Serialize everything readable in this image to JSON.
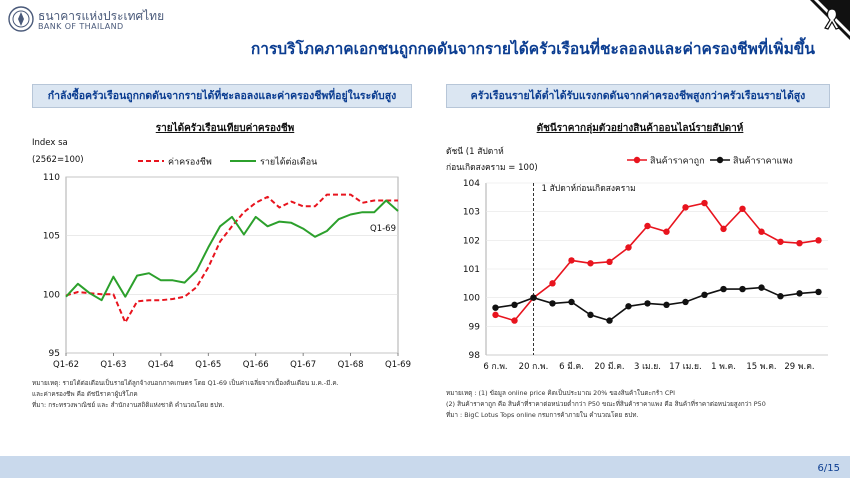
{
  "header": {
    "bank_name_th": "ธนาคารแห่งประเทศไทย",
    "bank_name_en": "BANK OF THAILAND",
    "title": "การบริโภคภาคเอกชนถูกกดดันจากรายได้ครัวเรือนที่ชะลอลงและค่าครองชีพที่เพิ่มขึ้น"
  },
  "left_panel": {
    "heading": "กำลังซื้อครัวเรือนถูกกดดันจากรายได้ที่ชะลอลงและค่าครองชีพที่อยู่ในระดับสูง",
    "chart_title": "รายได้ครัวเรือนเทียบค่าครองชีพ",
    "index_label": "Index sa",
    "base_label": "(2562=100)",
    "annotation": "Q1-69",
    "notes": [
      "หมายเหตุ: รายได้ต่อเดือนเป็นรายได้ลูกจ้างนอกภาคเกษตร โดย Q1-69 เป็นค่าเฉลี่ยจากเบื้องต้นเดือน ม.ค.-มี.ค.",
      "และค่าครองชีพ คือ ดัชนีราคาผู้บริโภค",
      "ที่มา: กระทรวงพาณิชย์ และ สำนักงานสถิติแห่งชาติ คำนวณโดย ธปท."
    ]
  },
  "right_panel": {
    "heading": "ครัวเรือนรายได้ต่ำได้รับแรงกดดันจากค่าครองชีพสูงกว่าครัวเรือนรายได้สูง",
    "chart_title": "ดัชนีราคากลุ่มตัวอย่างสินค้าออนไลน์รายสัปดาห์",
    "index_label_line1": "ดัชนี (1 สัปดาห์",
    "index_label_line2": "ก่อนเกิดสงคราม = 100)",
    "annotation": "1 สัปดาห์ก่อนเกิดสงคราม",
    "notes": [
      "หมายเหตุ : (1) ข้อมูล online price คิดเป็นประมาณ 20% ของสินค้าในตะกร้า CPI",
      "(2) สินค้าราคาถูก คือ สินค้าที่ราคาต่อหน่วยต่ำกว่า P50 ขณะที่สินค้าราคาแพง คือ สินค้าที่ราคาต่อหน่วยสูงกว่า P50",
      "ที่มา : BigC Lotus Tops online กรมการค้าภายใน คำนวณโดย ธปท."
    ]
  },
  "footer": {
    "page": "6/15"
  },
  "colors": {
    "red": "#e8141e",
    "green": "#2ca02c",
    "black": "#111111",
    "navy": "#0b3d91"
  },
  "chart_data": [
    {
      "type": "line",
      "title": "รายได้ครัวเรือนเทียบค่าครองชีพ",
      "ylabel": "Index sa (2562=100)",
      "ylim": [
        95,
        110
      ],
      "yticks": [
        95,
        100,
        105,
        110
      ],
      "x_tick_labels": [
        "Q1-62",
        "Q1-63",
        "Q1-64",
        "Q1-65",
        "Q1-66",
        "Q1-67",
        "Q1-68",
        "Q1-69"
      ],
      "x": [
        "Q1-62",
        "Q2-62",
        "Q3-62",
        "Q4-62",
        "Q1-63",
        "Q2-63",
        "Q3-63",
        "Q4-63",
        "Q1-64",
        "Q2-64",
        "Q3-64",
        "Q4-64",
        "Q1-65",
        "Q2-65",
        "Q3-65",
        "Q4-65",
        "Q1-66",
        "Q2-66",
        "Q3-66",
        "Q4-66",
        "Q1-67",
        "Q2-67",
        "Q3-67",
        "Q4-67",
        "Q1-68",
        "Q2-68",
        "Q3-68",
        "Q4-68",
        "Q1-69"
      ],
      "legend_position": "top",
      "series": [
        {
          "name": "ค่าครองชีพ",
          "color": "#e8141e",
          "style": "dashed",
          "values": [
            99.9,
            100.2,
            100.1,
            100.0,
            100.0,
            97.6,
            99.4,
            99.5,
            99.5,
            99.6,
            99.8,
            100.6,
            102.3,
            104.5,
            105.8,
            107.0,
            107.8,
            108.3,
            107.4,
            107.9,
            107.5,
            107.5,
            108.5,
            108.5,
            108.5,
            107.8,
            108.0,
            108.0,
            108.0
          ]
        },
        {
          "name": "รายได้ต่อเดือน",
          "color": "#2ca02c",
          "style": "solid",
          "values": [
            99.8,
            100.9,
            100.1,
            99.5,
            101.5,
            99.8,
            101.6,
            101.8,
            101.2,
            101.2,
            101.0,
            102.0,
            104.0,
            105.8,
            106.6,
            105.1,
            106.6,
            105.8,
            106.2,
            106.1,
            105.6,
            104.9,
            105.4,
            106.4,
            106.8,
            107.0,
            107.0,
            108.0,
            107.1
          ]
        }
      ]
    },
    {
      "type": "line",
      "title": "ดัชนีราคากลุ่มตัวอย่างสินค้าออนไลน์รายสัปดาห์",
      "ylabel": "ดัชนี (1 สัปดาห์ก่อนเกิดสงคราม = 100)",
      "ylim": [
        98,
        104
      ],
      "yticks": [
        98,
        99,
        100,
        101,
        102,
        103,
        104
      ],
      "x_tick_labels": [
        "6 ก.พ.",
        "20 ก.พ.",
        "6 มี.ค.",
        "20 มี.ค.",
        "3 เม.ย.",
        "17 เม.ย.",
        "1 พ.ค.",
        "15 พ.ค.",
        "29 พ.ค."
      ],
      "legend_position": "top",
      "series": [
        {
          "name": "สินค้าราคาถูก",
          "color": "#e8141e",
          "marker": "circle",
          "values": [
            99.4,
            99.2,
            100.0,
            100.5,
            101.3,
            101.2,
            101.25,
            101.75,
            102.5,
            102.3,
            103.15,
            103.3,
            102.4,
            103.1,
            102.3,
            101.95,
            101.9,
            102.0
          ]
        },
        {
          "name": "สินค้าราคาแพง",
          "color": "#111111",
          "marker": "circle",
          "values": [
            99.65,
            99.75,
            100.0,
            99.8,
            99.85,
            99.4,
            99.2,
            99.7,
            99.8,
            99.75,
            99.85,
            100.1,
            100.3,
            100.3,
            100.35,
            100.05,
            100.15,
            100.2
          ]
        }
      ]
    }
  ]
}
